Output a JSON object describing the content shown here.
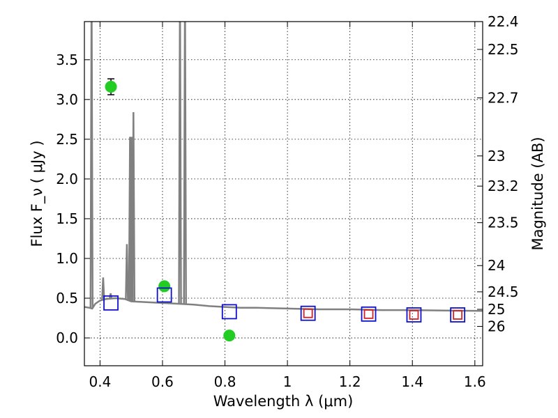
{
  "chart_data": {
    "type": "scatter",
    "xlabel": "Wavelength  λ (μm)",
    "ylabel": "Flux  F_ν  ( μJy )",
    "ylabel_right": "Magnitude (AB)",
    "xlim": [
      0.35,
      1.625
    ],
    "ylim": [
      -0.35,
      3.98
    ],
    "grid": true,
    "x_ticks": [
      0.4,
      0.6,
      0.8,
      1.0,
      1.2,
      1.4,
      1.6
    ],
    "x_tick_labels": [
      "0.4",
      "0.6",
      "0.8",
      "1",
      "1.2",
      "1.4",
      "1.6"
    ],
    "y_ticks": [
      0.0,
      0.5,
      1.0,
      1.5,
      2.0,
      2.5,
      3.0,
      3.5
    ],
    "y_tick_labels": [
      "0.0",
      "0.5",
      "1.0",
      "1.5",
      "2.0",
      "2.5",
      "3.0",
      "3.5"
    ],
    "mag_ticks": [
      {
        "label": "22.4",
        "flux": 3.98
      },
      {
        "label": "22.5",
        "flux": 3.63
      },
      {
        "label": "22.7",
        "flux": 3.02
      },
      {
        "label": "23",
        "flux": 2.29
      },
      {
        "label": "23.2",
        "flux": 1.91
      },
      {
        "label": "23.5",
        "flux": 1.45
      },
      {
        "label": "24",
        "flux": 0.91
      },
      {
        "label": "24.5",
        "flux": 0.58
      },
      {
        "label": "25",
        "flux": 0.36
      },
      {
        "label": "26",
        "flux": 0.145
      }
    ],
    "series": [
      {
        "marker": "circle",
        "color": "#22cc22",
        "points": [
          {
            "x": 0.435,
            "y": 3.16,
            "err": 0.1
          },
          {
            "x": 0.606,
            "y": 0.65,
            "err": 0.04
          },
          {
            "x": 0.814,
            "y": 0.03,
            "err": 0.03
          }
        ]
      },
      {
        "marker": "square",
        "color": "#1010cc",
        "points": [
          {
            "x": 0.435,
            "y": 0.44
          },
          {
            "x": 0.606,
            "y": 0.54
          },
          {
            "x": 0.814,
            "y": 0.33
          },
          {
            "x": 1.066,
            "y": 0.31
          },
          {
            "x": 1.26,
            "y": 0.3
          },
          {
            "x": 1.405,
            "y": 0.29
          },
          {
            "x": 1.545,
            "y": 0.29
          }
        ]
      },
      {
        "marker": "square",
        "color": "#d0202a",
        "points": [
          {
            "x": 1.066,
            "y": 0.31
          },
          {
            "x": 1.26,
            "y": 0.3
          },
          {
            "x": 1.405,
            "y": 0.29
          },
          {
            "x": 1.545,
            "y": 0.29
          }
        ]
      }
    ],
    "sed_color": "#808080",
    "sed_continuum": [
      [
        0.35,
        0.39
      ],
      [
        0.365,
        0.38
      ],
      [
        0.375,
        0.37
      ],
      [
        0.385,
        0.43
      ],
      [
        0.4,
        0.47
      ],
      [
        0.42,
        0.49
      ],
      [
        0.45,
        0.5
      ],
      [
        0.48,
        0.49
      ],
      [
        0.5,
        0.46
      ],
      [
        0.55,
        0.45
      ],
      [
        0.6,
        0.44
      ],
      [
        0.65,
        0.43
      ],
      [
        0.7,
        0.42
      ],
      [
        0.75,
        0.4
      ],
      [
        0.8,
        0.39
      ],
      [
        0.85,
        0.38
      ],
      [
        0.9,
        0.38
      ],
      [
        1.0,
        0.37
      ],
      [
        1.1,
        0.36
      ],
      [
        1.2,
        0.36
      ],
      [
        1.3,
        0.35
      ],
      [
        1.4,
        0.35
      ],
      [
        1.5,
        0.345
      ],
      [
        1.625,
        0.34
      ]
    ],
    "sed_lines": [
      {
        "x": 0.373,
        "peak": 4.5
      },
      {
        "x": 0.41,
        "peak": 0.76
      },
      {
        "x": 0.434,
        "peak": 0.56
      },
      {
        "x": 0.486,
        "peak": 1.18
      },
      {
        "x": 0.496,
        "peak": 2.53
      },
      {
        "x": 0.501,
        "peak": 2.53
      },
      {
        "x": 0.507,
        "peak": 2.84
      },
      {
        "x": 0.656,
        "peak": 4.5
      },
      {
        "x": 0.672,
        "peak": 4.5
      }
    ]
  }
}
